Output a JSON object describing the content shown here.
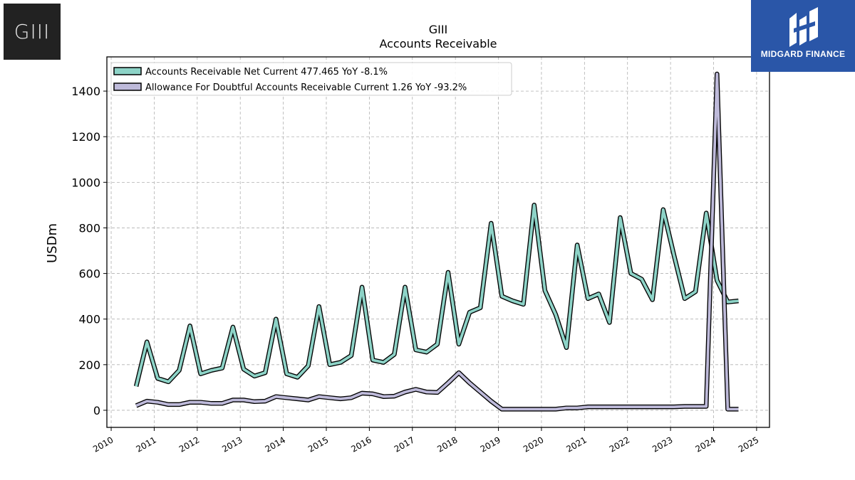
{
  "logos": {
    "left_text": "GIII",
    "right_text": "MIDGARD FINANCE"
  },
  "chart_data": {
    "type": "line",
    "title": "GIII",
    "subtitle": "Accounts Receivable",
    "ylabel": "USDm",
    "xlabel": "",
    "xlim": [
      2009.9,
      2025.3
    ],
    "ylim": [
      -75,
      1550
    ],
    "xticks": [
      2010,
      2011,
      2012,
      2013,
      2014,
      2015,
      2016,
      2017,
      2018,
      2019,
      2020,
      2021,
      2022,
      2023,
      2024,
      2025
    ],
    "yticks": [
      0,
      200,
      400,
      600,
      800,
      1000,
      1200,
      1400
    ],
    "grid": true,
    "legend_position": "top-left",
    "series": [
      {
        "name": "Accounts Receivable Net Current  477.465 YoY -8.1%",
        "color": "#8dd3c7",
        "x": [
          2010.58,
          2010.83,
          2011.08,
          2011.33,
          2011.58,
          2011.83,
          2012.08,
          2012.33,
          2012.58,
          2012.83,
          2013.08,
          2013.33,
          2013.58,
          2013.83,
          2014.08,
          2014.33,
          2014.58,
          2014.83,
          2015.08,
          2015.33,
          2015.58,
          2015.83,
          2016.08,
          2016.33,
          2016.58,
          2016.83,
          2017.08,
          2017.33,
          2017.58,
          2017.83,
          2018.08,
          2018.33,
          2018.58,
          2018.83,
          2019.08,
          2019.33,
          2019.58,
          2019.83,
          2020.08,
          2020.33,
          2020.58,
          2020.83,
          2021.08,
          2021.33,
          2021.58,
          2021.83,
          2022.08,
          2022.33,
          2022.58,
          2022.83,
          2023.08,
          2023.33,
          2023.58,
          2023.83,
          2024.08,
          2024.33,
          2024.58
        ],
        "y": [
          105,
          300,
          140,
          125,
          175,
          370,
          160,
          175,
          185,
          365,
          180,
          150,
          165,
          400,
          160,
          145,
          195,
          455,
          200,
          210,
          240,
          540,
          220,
          210,
          245,
          540,
          265,
          255,
          290,
          605,
          290,
          430,
          450,
          820,
          500,
          480,
          465,
          900,
          525,
          420,
          275,
          725,
          490,
          510,
          385,
          845,
          600,
          575,
          485,
          880,
          680,
          490,
          520,
          865,
          570,
          475,
          480
        ]
      },
      {
        "name": "Allowance For Doubtful Accounts Receivable Current  1.26 YoY -93.2%",
        "color": "#bebada",
        "x": [
          2010.58,
          2010.83,
          2011.08,
          2011.33,
          2011.58,
          2011.83,
          2012.08,
          2012.33,
          2012.58,
          2012.83,
          2013.08,
          2013.33,
          2013.58,
          2013.83,
          2014.08,
          2014.33,
          2014.58,
          2014.83,
          2015.08,
          2015.33,
          2015.58,
          2015.83,
          2016.08,
          2016.33,
          2016.58,
          2016.83,
          2017.08,
          2017.33,
          2017.58,
          2017.83,
          2018.08,
          2018.33,
          2018.58,
          2018.83,
          2019.08,
          2019.33,
          2019.58,
          2019.83,
          2020.08,
          2020.33,
          2020.58,
          2020.83,
          2021.08,
          2021.33,
          2021.58,
          2021.83,
          2022.08,
          2022.33,
          2022.58,
          2022.83,
          2023.08,
          2023.33,
          2023.58,
          2023.83,
          2024.08,
          2024.33,
          2024.58
        ],
        "y": [
          20,
          40,
          35,
          25,
          25,
          35,
          35,
          30,
          30,
          45,
          45,
          38,
          40,
          60,
          55,
          50,
          45,
          60,
          55,
          50,
          55,
          75,
          72,
          60,
          62,
          80,
          92,
          80,
          78,
          120,
          165,
          120,
          80,
          40,
          5,
          5,
          5,
          5,
          5,
          5,
          10,
          10,
          15,
          15,
          15,
          15,
          15,
          15,
          15,
          15,
          15,
          17,
          17,
          17,
          1475,
          5,
          5
        ]
      }
    ]
  }
}
